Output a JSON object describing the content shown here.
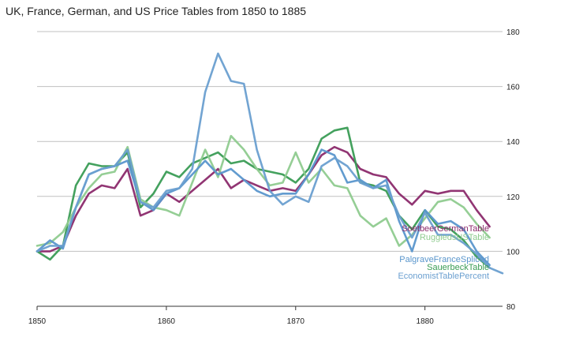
{
  "chart_data": {
    "type": "line",
    "title": "UK, France, German, and US Price Tables from 1850 to 1885",
    "xlabel": "",
    "ylabel": "",
    "xlim": [
      1850,
      1886
    ],
    "ylim": [
      80,
      180
    ],
    "x_ticks": [
      "1850",
      "1860",
      "1870",
      "1880"
    ],
    "y_ticks": [
      "80",
      "100",
      "120",
      "140",
      "160",
      "180"
    ],
    "grid": true,
    "series": [
      {
        "name": "SoetbeerGermanTable",
        "color": "#8b2a6b",
        "x": [
          1850,
          1851,
          1852,
          1853,
          1854,
          1855,
          1856,
          1857,
          1858,
          1859,
          1860,
          1861,
          1862,
          1863,
          1864,
          1865,
          1866,
          1867,
          1868,
          1869,
          1870,
          1871,
          1872,
          1873,
          1874,
          1875,
          1876,
          1877,
          1878,
          1879,
          1880,
          1881,
          1882,
          1883,
          1884,
          1885
        ],
        "y": [
          100,
          100,
          102,
          113,
          121,
          124,
          123,
          130,
          113,
          115,
          121,
          118,
          122,
          126,
          130,
          123,
          126,
          124,
          122,
          123,
          122,
          128,
          135,
          138,
          136,
          130,
          128,
          127,
          121,
          117,
          122,
          121,
          122,
          122,
          115,
          109
        ]
      },
      {
        "name": "SauerbeckTable",
        "color": "#3a9c55",
        "x": [
          1850,
          1851,
          1852,
          1853,
          1854,
          1855,
          1856,
          1857,
          1858,
          1859,
          1860,
          1861,
          1862,
          1863,
          1864,
          1865,
          1866,
          1867,
          1868,
          1869,
          1870,
          1871,
          1872,
          1873,
          1874,
          1875,
          1876,
          1877,
          1878,
          1879,
          1880,
          1881,
          1882,
          1883,
          1884,
          1885
        ],
        "y": [
          100,
          97,
          102,
          124,
          132,
          131,
          131,
          136,
          116,
          121,
          129,
          127,
          132,
          134,
          136,
          132,
          133,
          130,
          129,
          128,
          125,
          130,
          141,
          144,
          145,
          125,
          124,
          122,
          113,
          108,
          115,
          109,
          108,
          104,
          98,
          94
        ]
      },
      {
        "name": "RuggiedsUSTable",
        "color": "#8fcb8f",
        "x": [
          1850,
          1851,
          1852,
          1853,
          1854,
          1855,
          1856,
          1857,
          1858,
          1859,
          1860,
          1861,
          1862,
          1863,
          1864,
          1865,
          1866,
          1867,
          1868,
          1869,
          1870,
          1871,
          1872,
          1873,
          1874,
          1875,
          1876,
          1877,
          1878,
          1879,
          1880,
          1881,
          1882,
          1883,
          1884,
          1885
        ],
        "y": [
          102,
          103,
          107,
          116,
          123,
          128,
          129,
          138,
          119,
          116,
          115,
          113,
          125,
          137,
          127,
          142,
          137,
          130,
          124,
          125,
          136,
          125,
          130,
          124,
          123,
          113,
          109,
          112,
          102,
          106,
          112,
          118,
          119,
          116,
          110,
          105
        ]
      },
      {
        "name": "PalgraveFranceSpliced",
        "color": "#5a96cc",
        "x": [
          1850,
          1851,
          1852,
          1853,
          1854,
          1855,
          1856,
          1857,
          1858,
          1859,
          1860,
          1861,
          1862,
          1863,
          1864,
          1865,
          1866,
          1867,
          1868,
          1869,
          1870,
          1871,
          1872,
          1873,
          1874,
          1875,
          1876,
          1877,
          1878,
          1879,
          1880,
          1881,
          1882,
          1883,
          1884,
          1885
        ],
        "y": [
          100,
          104,
          101,
          116,
          128,
          130,
          131,
          133,
          118,
          115,
          121,
          123,
          128,
          133,
          128,
          130,
          126,
          122,
          120,
          121,
          121,
          128,
          137,
          135,
          125,
          126,
          123,
          126,
          111,
          100,
          115,
          110,
          111,
          108,
          100,
          95
        ]
      },
      {
        "name": "EconomistTablePercent",
        "color": "#6a9fd0",
        "x": [
          1850,
          1851,
          1852,
          1853,
          1854,
          1855,
          1856,
          1857,
          1858,
          1859,
          1860,
          1861,
          1862,
          1863,
          1864,
          1865,
          1866,
          1867,
          1868,
          1869,
          1870,
          1871,
          1872,
          1873,
          1874,
          1875,
          1876,
          1877,
          1878,
          1879,
          1880,
          1881,
          1882,
          1883,
          1884,
          1885,
          1886
        ],
        "y": [
          100,
          102,
          102,
          116,
          128,
          130,
          131,
          137,
          118,
          116,
          122,
          123,
          130,
          158,
          172,
          162,
          161,
          137,
          122,
          117,
          120,
          118,
          131,
          134,
          131,
          125,
          123,
          124,
          113,
          105,
          114,
          106,
          106,
          103,
          99,
          94,
          92
        ]
      }
    ],
    "series_labels": [
      {
        "text": "SoetbeerGermanTable",
        "color": "#8b2a6b"
      },
      {
        "text": "RuggiedsUSTable",
        "color": "#8fcb8f"
      },
      {
        "text": "PalgraveFranceSpliced",
        "color": "#5a96cc"
      },
      {
        "text": "SauerbeckTable",
        "color": "#3a9c55"
      },
      {
        "text": "EconomistTablePercent",
        "color": "#6a9fd0"
      }
    ]
  },
  "colors": {
    "gridline": "#c0c0c0",
    "axis": "#333333",
    "text": "#222222"
  }
}
